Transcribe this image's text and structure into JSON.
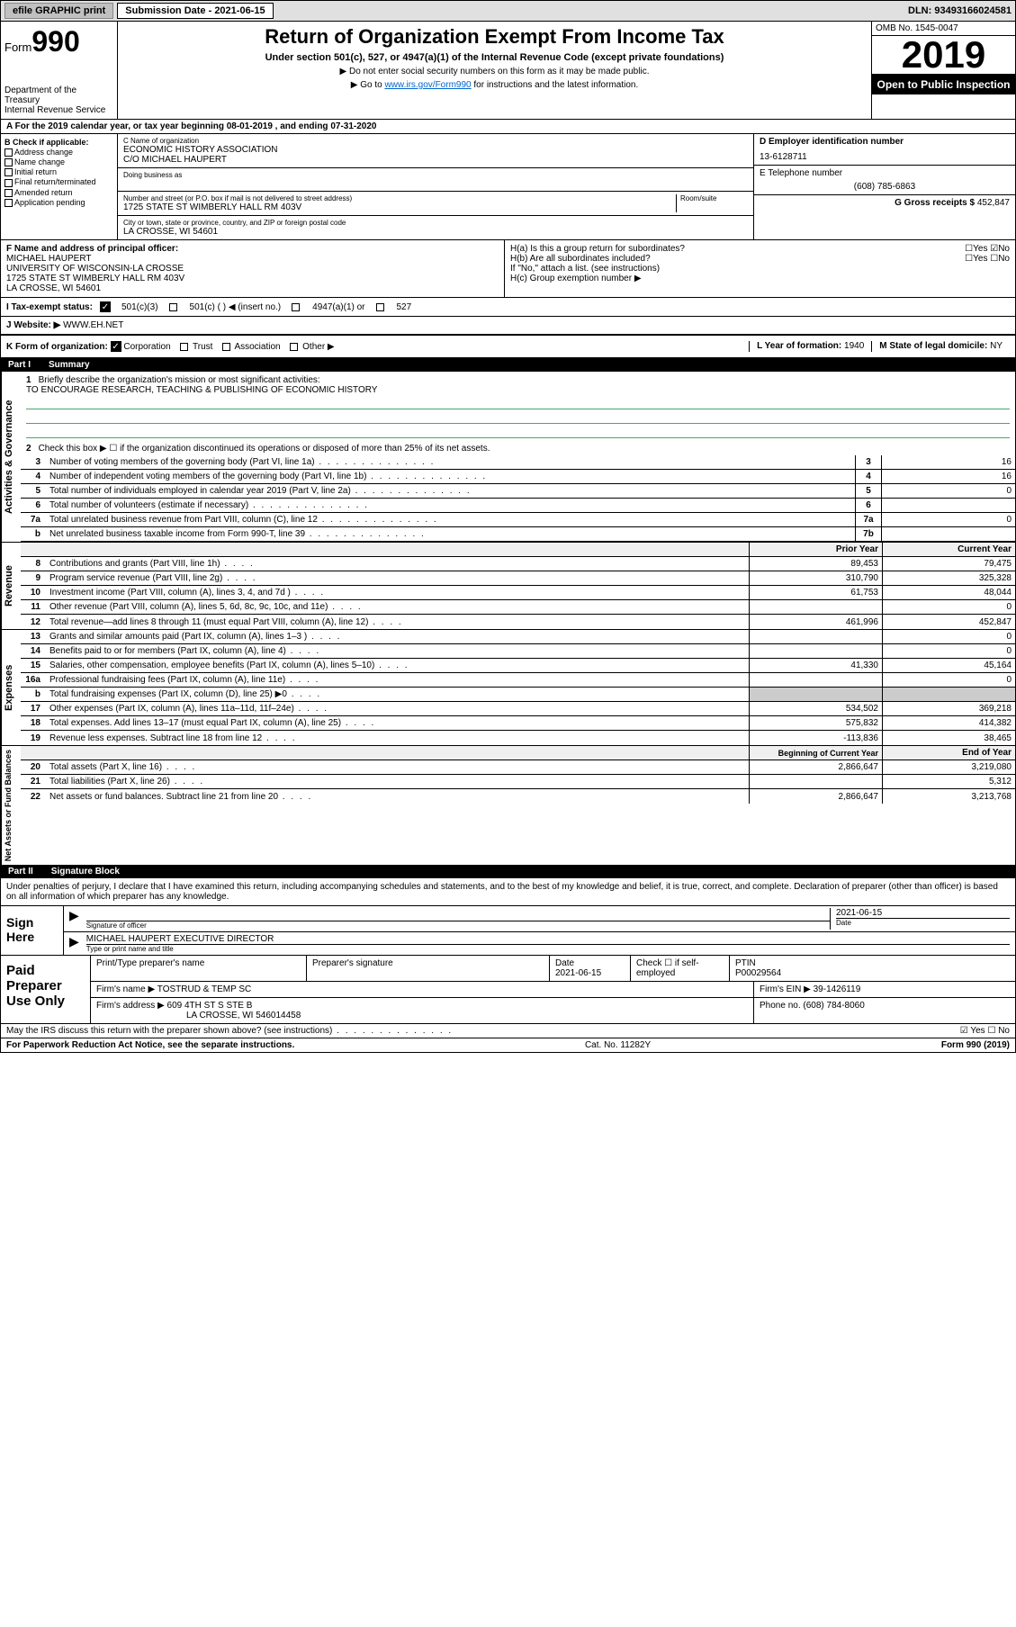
{
  "topbar": {
    "efile": "efile GRAPHIC print",
    "submission": "Submission Date - 2021-06-15",
    "dln": "DLN: 93493166024581"
  },
  "header": {
    "form_label": "Form",
    "form_num": "990",
    "dept": "Department of the Treasury\nInternal Revenue Service",
    "title": "Return of Organization Exempt From Income Tax",
    "sub1": "Under section 501(c), 527, or 4947(a)(1) of the Internal Revenue Code (except private foundations)",
    "sub2": "▶ Do not enter social security numbers on this form as it may be made public.",
    "sub3_pre": "▶ Go to ",
    "sub3_link": "www.irs.gov/Form990",
    "sub3_post": " for instructions and the latest information.",
    "omb": "OMB No. 1545-0047",
    "year": "2019",
    "open": "Open to Public Inspection"
  },
  "period": "A For the 2019 calendar year, or tax year beginning 08-01-2019     , and ending 07-31-2020",
  "section_b": {
    "label": "B Check if applicable:",
    "items": [
      "Address change",
      "Name change",
      "Initial return",
      "Final return/terminated",
      "Amended return",
      "Application pending"
    ]
  },
  "section_c": {
    "name_label": "C Name of organization",
    "name": "ECONOMIC HISTORY ASSOCIATION",
    "care_of": "C/O MICHAEL HAUPERT",
    "dba_label": "Doing business as",
    "addr_label": "Number and street (or P.O. box if mail is not delivered to street address)",
    "room_label": "Room/suite",
    "addr": "1725 STATE ST WIMBERLY HALL RM 403V",
    "city_label": "City or town, state or province, country, and ZIP or foreign postal code",
    "city": "LA CROSSE, WI  54601"
  },
  "section_d": {
    "label": "D Employer identification number",
    "value": "13-6128711"
  },
  "section_e": {
    "label": "E Telephone number",
    "value": "(608) 785-6863"
  },
  "section_g": {
    "label": "G Gross receipts $",
    "value": "452,847"
  },
  "section_f": {
    "label": "F  Name and address of principal officer:",
    "name": "MICHAEL HAUPERT",
    "line1": "UNIVERSITY OF WISCONSIN-LA CROSSE",
    "line2": "1725 STATE ST WIMBERLY HALL RM 403V",
    "line3": "LA CROSSE, WI  54601"
  },
  "section_h": {
    "a": "H(a)  Is this a group return for subordinates?",
    "b": "H(b)  Are all subordinates included?",
    "b_note": "If \"No,\" attach a list. (see instructions)",
    "c": "H(c)  Group exemption number ▶",
    "yes": "Yes",
    "no": "No"
  },
  "tax_exempt": {
    "label": "I    Tax-exempt status:",
    "opt1": "501(c)(3)",
    "opt2": "501(c) (  ) ◀ (insert no.)",
    "opt3": "4947(a)(1) or",
    "opt4": "527"
  },
  "website": {
    "label": "J   Website: ▶",
    "value": "WWW.EH.NET"
  },
  "k_row": {
    "label": "K Form of organization:",
    "corp": "Corporation",
    "trust": "Trust",
    "assoc": "Association",
    "other": "Other ▶",
    "year_label": "L Year of formation:",
    "year": "1940",
    "state_label": "M State of legal domicile:",
    "state": "NY"
  },
  "part1": {
    "num": "Part I",
    "title": "Summary"
  },
  "mission": {
    "num": "1",
    "label": "Briefly describe the organization's mission or most significant activities:",
    "text": "TO ENCOURAGE RESEARCH, TEACHING & PUBLISHING OF ECONOMIC HISTORY"
  },
  "line2": {
    "num": "2",
    "text": "Check this box ▶ ☐  if the organization discontinued its operations or disposed of more than 25% of its net assets."
  },
  "sidelabels": {
    "gov": "Activities & Governance",
    "rev": "Revenue",
    "exp": "Expenses",
    "net": "Net Assets or Fund Balances"
  },
  "gov_lines": [
    {
      "num": "3",
      "text": "Number of voting members of the governing body (Part VI, line 1a)",
      "box": "3",
      "val": "16"
    },
    {
      "num": "4",
      "text": "Number of independent voting members of the governing body (Part VI, line 1b)",
      "box": "4",
      "val": "16"
    },
    {
      "num": "5",
      "text": "Total number of individuals employed in calendar year 2019 (Part V, line 2a)",
      "box": "5",
      "val": "0"
    },
    {
      "num": "6",
      "text": "Total number of volunteers (estimate if necessary)",
      "box": "6",
      "val": ""
    },
    {
      "num": "7a",
      "text": "Total unrelated business revenue from Part VIII, column (C), line 12",
      "box": "7a",
      "val": "0"
    },
    {
      "num": "b",
      "text": "Net unrelated business taxable income from Form 990-T, line 39",
      "box": "7b",
      "val": ""
    }
  ],
  "col_headers": {
    "prior": "Prior Year",
    "current": "Current Year"
  },
  "rev_lines": [
    {
      "num": "8",
      "text": "Contributions and grants (Part VIII, line 1h)",
      "prior": "89,453",
      "curr": "79,475"
    },
    {
      "num": "9",
      "text": "Program service revenue (Part VIII, line 2g)",
      "prior": "310,790",
      "curr": "325,328"
    },
    {
      "num": "10",
      "text": "Investment income (Part VIII, column (A), lines 3, 4, and 7d )",
      "prior": "61,753",
      "curr": "48,044"
    },
    {
      "num": "11",
      "text": "Other revenue (Part VIII, column (A), lines 5, 6d, 8c, 9c, 10c, and 11e)",
      "prior": "",
      "curr": "0"
    },
    {
      "num": "12",
      "text": "Total revenue—add lines 8 through 11 (must equal Part VIII, column (A), line 12)",
      "prior": "461,996",
      "curr": "452,847"
    }
  ],
  "exp_lines": [
    {
      "num": "13",
      "text": "Grants and similar amounts paid (Part IX, column (A), lines 1–3 )",
      "prior": "",
      "curr": "0"
    },
    {
      "num": "14",
      "text": "Benefits paid to or for members (Part IX, column (A), line 4)",
      "prior": "",
      "curr": "0"
    },
    {
      "num": "15",
      "text": "Salaries, other compensation, employee benefits (Part IX, column (A), lines 5–10)",
      "prior": "41,330",
      "curr": "45,164"
    },
    {
      "num": "16a",
      "text": "Professional fundraising fees (Part IX, column (A), line 11e)",
      "prior": "",
      "curr": "0"
    },
    {
      "num": "b",
      "text": "Total fundraising expenses (Part IX, column (D), line 25) ▶0",
      "prior": "SHADE",
      "curr": "SHADE"
    },
    {
      "num": "17",
      "text": "Other expenses (Part IX, column (A), lines 11a–11d, 11f–24e)",
      "prior": "534,502",
      "curr": "369,218"
    },
    {
      "num": "18",
      "text": "Total expenses. Add lines 13–17 (must equal Part IX, column (A), line 25)",
      "prior": "575,832",
      "curr": "414,382"
    },
    {
      "num": "19",
      "text": "Revenue less expenses. Subtract line 18 from line 12",
      "prior": "-113,836",
      "curr": "38,465"
    }
  ],
  "net_headers": {
    "begin": "Beginning of Current Year",
    "end": "End of Year"
  },
  "net_lines": [
    {
      "num": "20",
      "text": "Total assets (Part X, line 16)",
      "prior": "2,866,647",
      "curr": "3,219,080"
    },
    {
      "num": "21",
      "text": "Total liabilities (Part X, line 26)",
      "prior": "",
      "curr": "5,312"
    },
    {
      "num": "22",
      "text": "Net assets or fund balances. Subtract line 21 from line 20",
      "prior": "2,866,647",
      "curr": "3,213,768"
    }
  ],
  "part2": {
    "num": "Part II",
    "title": "Signature Block"
  },
  "sig_text": "Under penalties of perjury, I declare that I have examined this return, including accompanying schedules and statements, and to the best of my knowledge and belief, it is true, correct, and complete. Declaration of preparer (other than officer) is based on all information of which preparer has any knowledge.",
  "sign": {
    "label": "Sign Here",
    "sig_label": "Signature of officer",
    "date": "2021-06-15",
    "date_label": "Date",
    "name": "MICHAEL HAUPERT  EXECUTIVE DIRECTOR",
    "name_label": "Type or print name and title"
  },
  "prep": {
    "label": "Paid Preparer Use Only",
    "name_label": "Print/Type preparer's name",
    "sig_label": "Preparer's signature",
    "date_label": "Date",
    "date": "2021-06-15",
    "check_label": "Check ☐ if self-employed",
    "ptin_label": "PTIN",
    "ptin": "P00029564",
    "firm_label": "Firm's name     ▶",
    "firm": "TOSTRUD & TEMP SC",
    "ein_label": "Firm's EIN ▶",
    "ein": "39-1426119",
    "addr_label": "Firm's address ▶",
    "addr1": "609 4TH ST S STE B",
    "addr2": "LA CROSSE, WI  546014458",
    "phone_label": "Phone no.",
    "phone": "(608) 784-8060"
  },
  "discuss": {
    "text": "May the IRS discuss this return with the preparer shown above? (see instructions)",
    "yes": "Yes",
    "no": "No"
  },
  "footer": {
    "left": "For Paperwork Reduction Act Notice, see the separate instructions.",
    "mid": "Cat. No. 11282Y",
    "right": "Form 990 (2019)"
  }
}
